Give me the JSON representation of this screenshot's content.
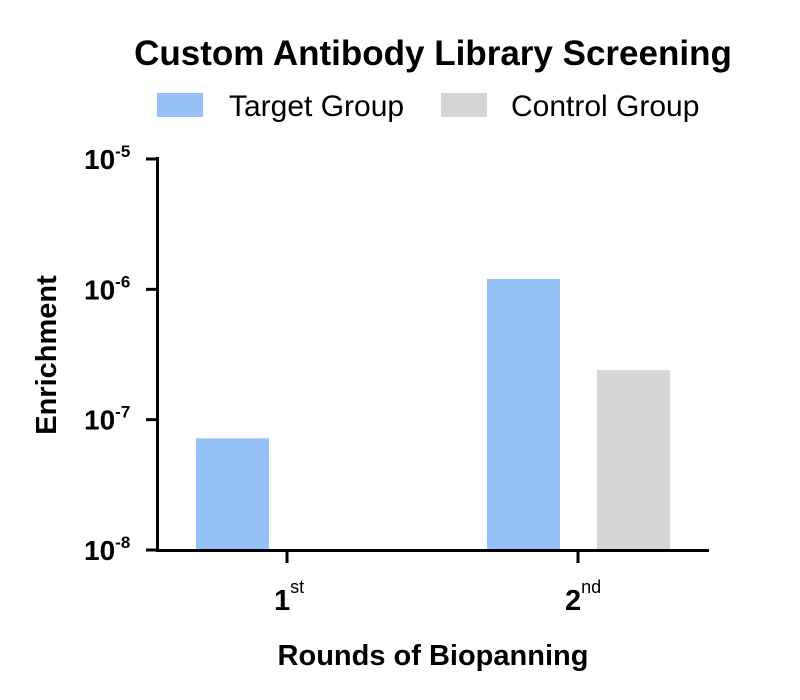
{
  "chart_data": {
    "type": "bar",
    "title": "Custom Antibody Library Screening",
    "xlabel": "Rounds of Biopanning",
    "ylabel": "Enrichment",
    "yscale": "log",
    "ylim": [
      1e-08,
      1e-05
    ],
    "yticks": [
      {
        "value": 1e-08,
        "base": "10",
        "exp": "-8"
      },
      {
        "value": 1e-07,
        "base": "10",
        "exp": "-7"
      },
      {
        "value": 1e-06,
        "base": "10",
        "exp": "-6"
      },
      {
        "value": 1e-05,
        "base": "10",
        "exp": "-5"
      }
    ],
    "categories": [
      {
        "main": "1",
        "sup": "st"
      },
      {
        "main": "2",
        "sup": "nd"
      }
    ],
    "series": [
      {
        "name": "Target Group",
        "color": "#94c1f7",
        "values": [
          7.2e-08,
          1.2e-06
        ]
      },
      {
        "name": "Control Group",
        "color": "#d6d6d6",
        "values": [
          null,
          2.4e-07
        ]
      }
    ],
    "legend_position": "top",
    "grid": false
  }
}
